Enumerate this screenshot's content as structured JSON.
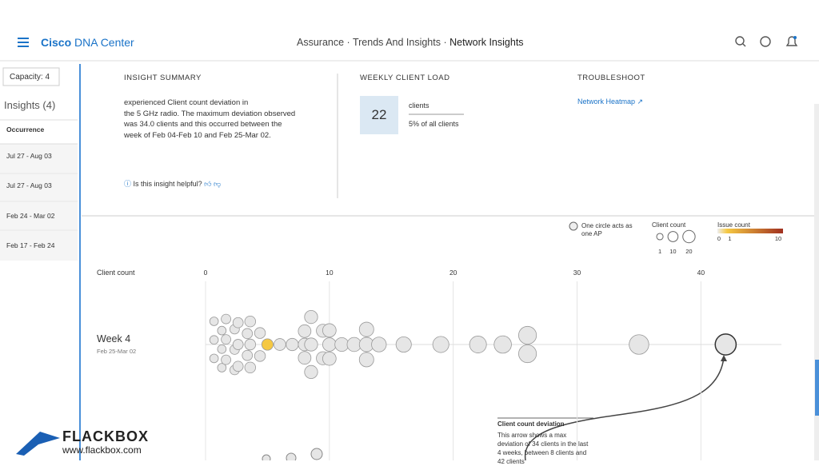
{
  "header": {
    "brand_bold": "Cisco",
    "brand": "DNA Center",
    "breadcrumb": [
      "Assurance",
      "Trends And Insights",
      "Network Insights"
    ],
    "separator": "·"
  },
  "sidebar": {
    "capacity": "Capacity: 4",
    "title": "Insights (4)",
    "column": "Occurrence",
    "items": [
      "Jul 27 - Aug 03",
      "Jul 27 - Aug 03",
      "Feb 24 - Mar 02",
      "Feb 17 - Feb 24"
    ]
  },
  "summary": {
    "heading": "INSIGHT SUMMARY",
    "lines": [
      "experienced Client count deviation in",
      "the 5 GHz radio. The maximum deviation observed",
      "was 34.0 clients and this occurred between the",
      "week of Feb 04-Feb 10 and Feb 25-Mar 02."
    ],
    "helpful": "Is this insight helpful?"
  },
  "load": {
    "heading": "WEEKLY CLIENT LOAD",
    "value": 22,
    "unit": "clients",
    "share": "5% of all clients"
  },
  "troubleshoot": {
    "heading": "TROUBLESHOOT",
    "link": "Network Heatmap"
  },
  "legend": {
    "ap_note_lines": [
      "One circle acts as",
      "one AP"
    ],
    "size_title": "Client count",
    "sizes": [
      1,
      10,
      20
    ],
    "issue_title": "Issue count",
    "issue_ticks": [
      0,
      1,
      10
    ]
  },
  "chart_data": {
    "type": "scatter",
    "x_label": "Client count",
    "xlim": [
      0,
      46.5
    ],
    "xticks": [
      0,
      10,
      20,
      30,
      40
    ],
    "rows": [
      {
        "label": "Week 4",
        "sublabel": "Feb 25-Mar 02",
        "values": [
          1,
          1,
          1,
          1,
          1,
          1,
          2,
          2,
          2,
          2,
          2,
          2,
          3,
          3,
          3,
          3,
          3,
          4,
          4,
          4,
          4,
          4,
          5,
          6,
          7,
          8,
          8,
          8,
          9,
          9,
          9,
          9,
          9,
          10,
          10,
          10,
          11,
          12,
          13,
          13,
          13,
          14,
          16,
          19,
          22,
          24,
          26,
          26,
          35,
          42
        ],
        "issue_counts": [
          0,
          0,
          0,
          0,
          0,
          0,
          0,
          0,
          0,
          0,
          0,
          0,
          0,
          0,
          0,
          0,
          0,
          0,
          0,
          0,
          0,
          0,
          1,
          0,
          0,
          0,
          0,
          0,
          0,
          0,
          0,
          0,
          0,
          0,
          0,
          0,
          0,
          0,
          0,
          0,
          0,
          0,
          0,
          0,
          0,
          0,
          0,
          0,
          0,
          0
        ]
      }
    ],
    "annotation": {
      "title": "Client count deviation",
      "lines": [
        "This arrow shows a max",
        "deviation of 34 clients in the last",
        "4 weeks, between 8 clients and",
        "42 clients"
      ]
    }
  },
  "logo": {
    "name": "FLACKBOX",
    "url": "www.flackbox.com"
  }
}
